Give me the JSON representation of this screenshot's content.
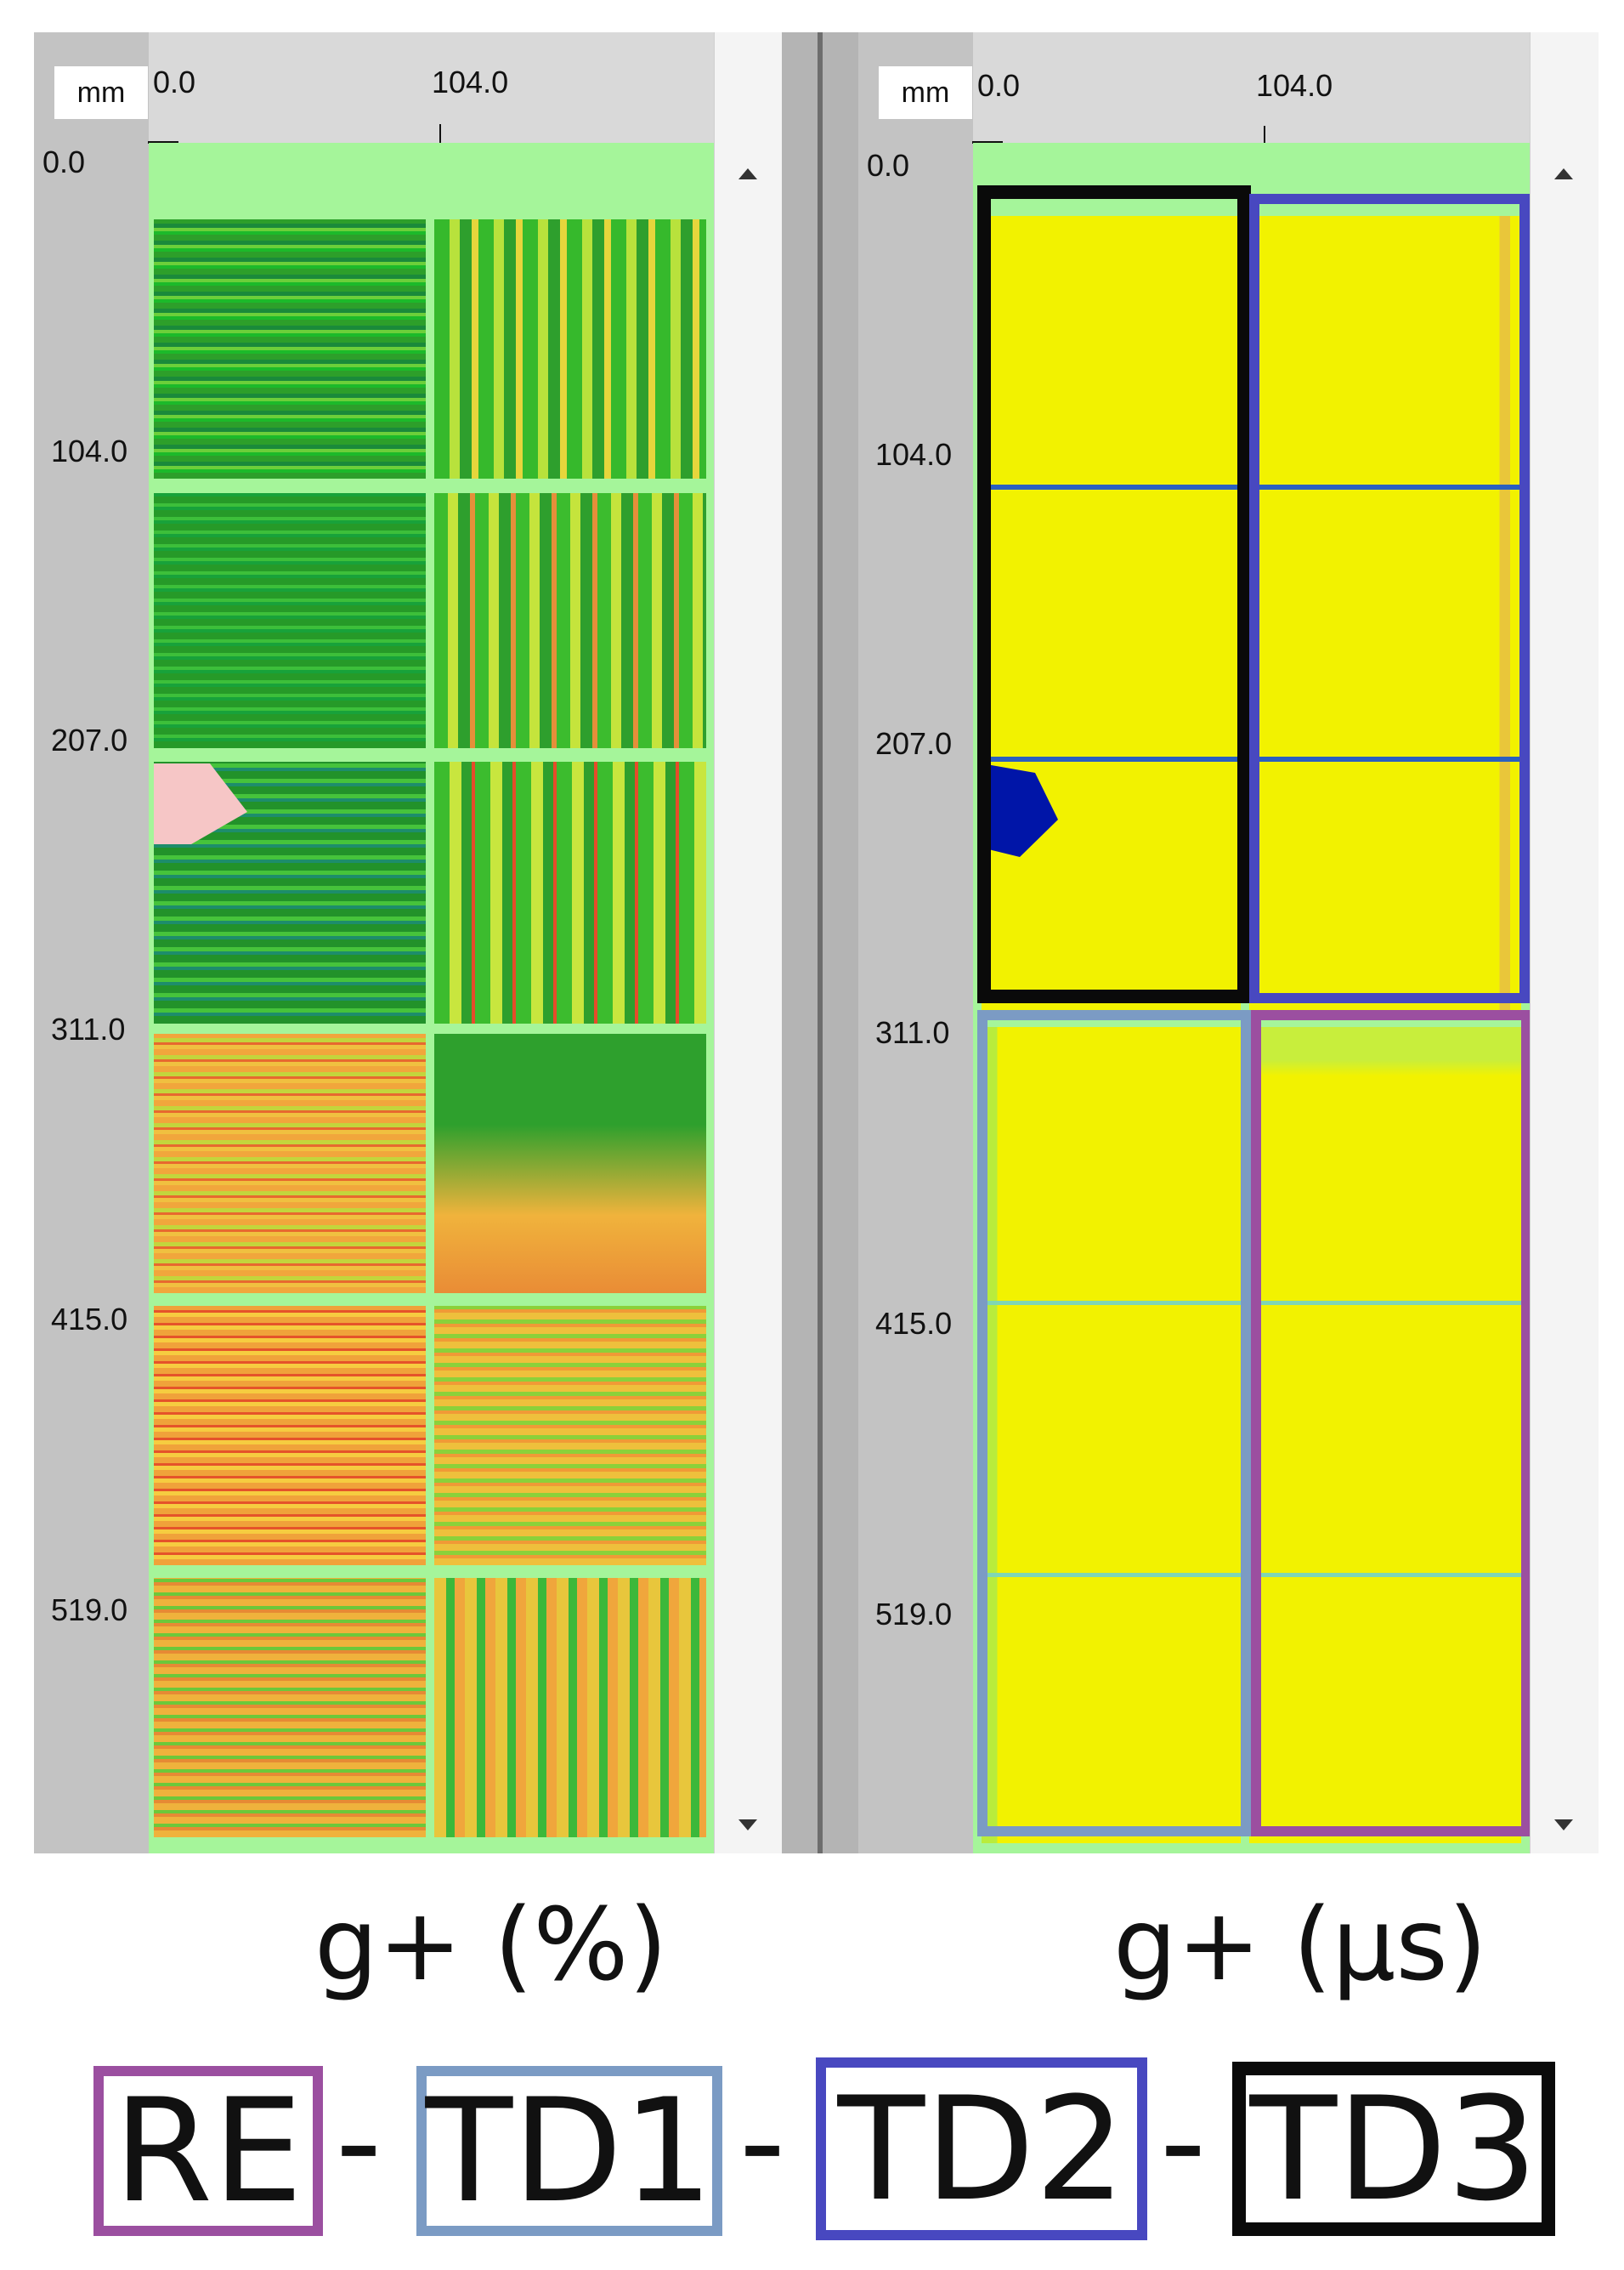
{
  "panels": [
    {
      "id": "left",
      "unit": "mm",
      "x_ticks": [
        "0.0",
        "104.0"
      ],
      "y_ticks": [
        "0.0",
        "104.0",
        "207.0",
        "311.0",
        "415.0",
        "519.0"
      ],
      "caption": "g+ (%)"
    },
    {
      "id": "right",
      "unit": "mm",
      "x_ticks": [
        "0.0",
        "104.0"
      ],
      "y_ticks": [
        "0.0",
        "104.0",
        "207.0",
        "311.0",
        "415.0",
        "519.0"
      ],
      "caption": "g+ (µs)"
    }
  ],
  "legend": [
    {
      "label": "RE",
      "color": "#9b4fa0"
    },
    {
      "label": "TD1",
      "color": "#7b9bc4"
    },
    {
      "label": "TD2",
      "color": "#4848c0"
    },
    {
      "label": "TD3",
      "color": "#0a0a0a"
    }
  ],
  "legend_separator": "-",
  "colors": {
    "green_map": "#2fa52a",
    "orange_map": "#f0a23a",
    "yellow_map": "#f2f200",
    "background_map": "#a5f59a",
    "defect_blue": "#0015a8"
  }
}
